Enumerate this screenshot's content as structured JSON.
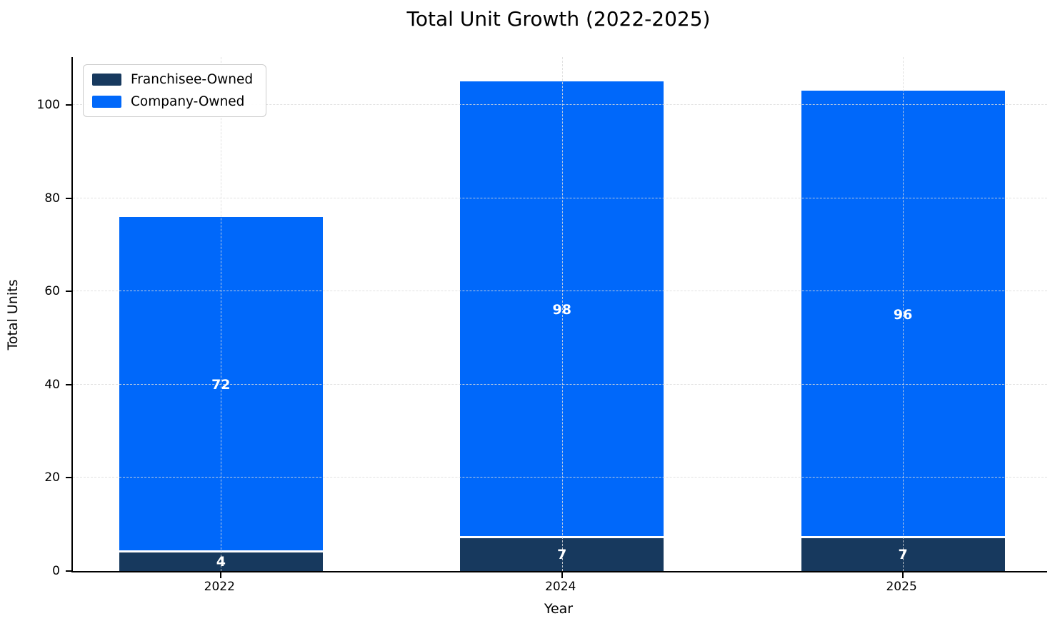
{
  "title": "Total Unit Growth (2022-2025)",
  "chart_data": {
    "type": "bar",
    "stacked": true,
    "title": "Total Unit Growth (2022-2025)",
    "xlabel": "Year",
    "ylabel": "Total Units",
    "categories": [
      "2022",
      "2024",
      "2025"
    ],
    "series": [
      {
        "name": "Franchisee-Owned",
        "color": "#17395e",
        "values": [
          4,
          7,
          7
        ]
      },
      {
        "name": "Company-Owned",
        "color": "#0068fa",
        "values": [
          72,
          98,
          96
        ]
      }
    ],
    "totals": [
      76,
      105,
      103
    ],
    "yticks": [
      0,
      20,
      40,
      60,
      80,
      100
    ],
    "ylim": [
      0,
      110.25
    ],
    "grid": "dashed",
    "legend_position": "upper left",
    "bar_label_color": "#ffffff"
  }
}
